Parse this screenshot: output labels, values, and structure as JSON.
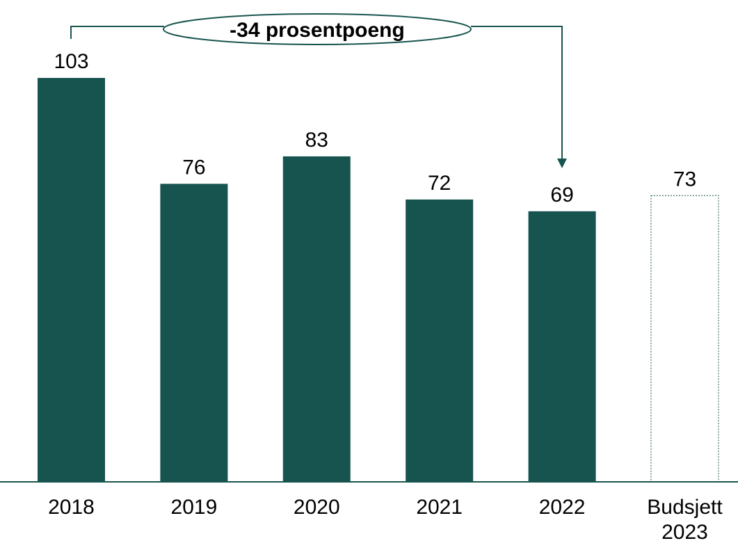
{
  "chart_data": {
    "type": "bar",
    "annotation": "-34 prosentpoeng",
    "categories": [
      "2018",
      "2019",
      "2020",
      "2021",
      "2022",
      "Budsjett 2023"
    ],
    "values": [
      103,
      76,
      83,
      72,
      69,
      73
    ],
    "color": "#17544f",
    "bar_fills": [
      "#17544f",
      "#17544f",
      "#17544f",
      "#17544f",
      "#17544f",
      "none"
    ],
    "grid": false
  }
}
